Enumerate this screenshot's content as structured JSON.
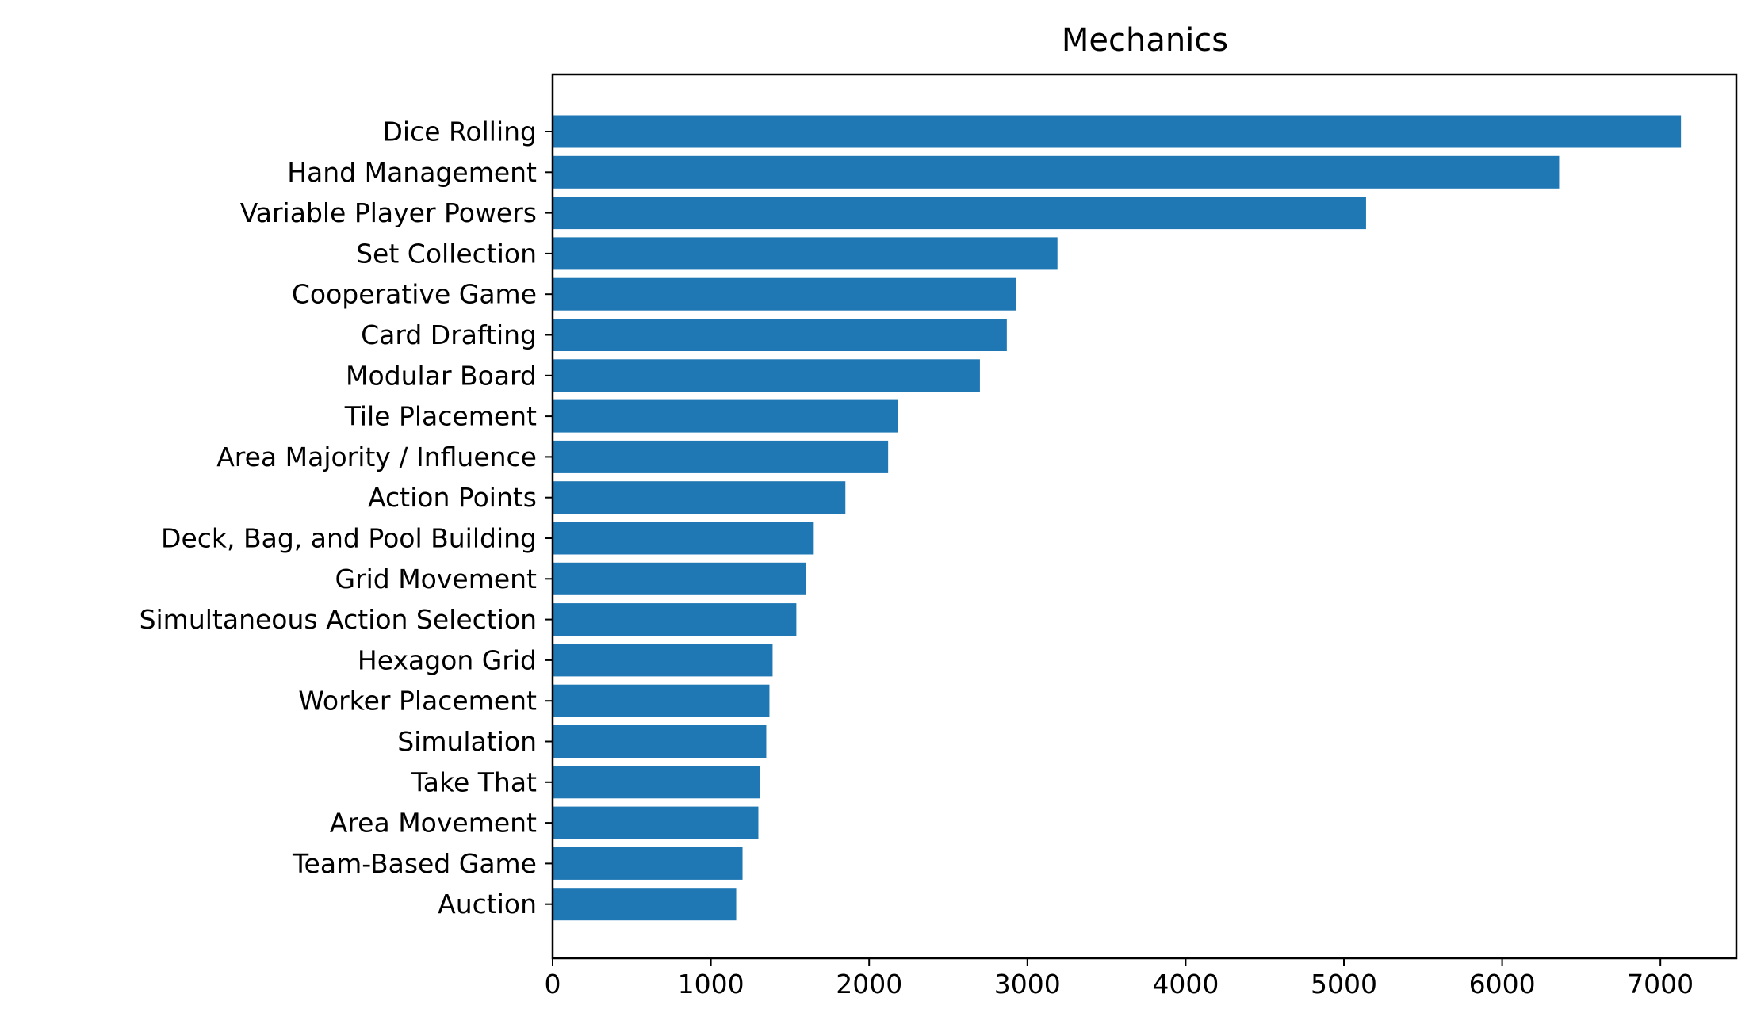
{
  "chart_data": {
    "type": "bar",
    "orientation": "horizontal",
    "title": "Mechanics",
    "xlabel": "",
    "ylabel": "",
    "categories": [
      "Dice Rolling",
      "Hand Management",
      "Variable Player Powers",
      "Set Collection",
      "Cooperative Game",
      "Card Drafting",
      "Modular Board",
      "Tile Placement",
      "Area Majority / Influence",
      "Action Points",
      "Deck, Bag, and Pool Building",
      "Grid Movement",
      "Simultaneous Action Selection",
      "Hexagon Grid",
      "Worker Placement",
      "Simulation",
      "Take That",
      "Area Movement",
      "Team-Based Game",
      "Auction"
    ],
    "values": [
      7130,
      6360,
      5140,
      3190,
      2930,
      2870,
      2700,
      2180,
      2120,
      1850,
      1650,
      1600,
      1540,
      1390,
      1370,
      1350,
      1310,
      1300,
      1200,
      1160
    ],
    "xlim": [
      0,
      7480
    ],
    "xticks": [
      0,
      1000,
      2000,
      3000,
      4000,
      5000,
      6000,
      7000
    ],
    "grid": false,
    "legend": "none",
    "bar_color": "#1f77b4"
  }
}
